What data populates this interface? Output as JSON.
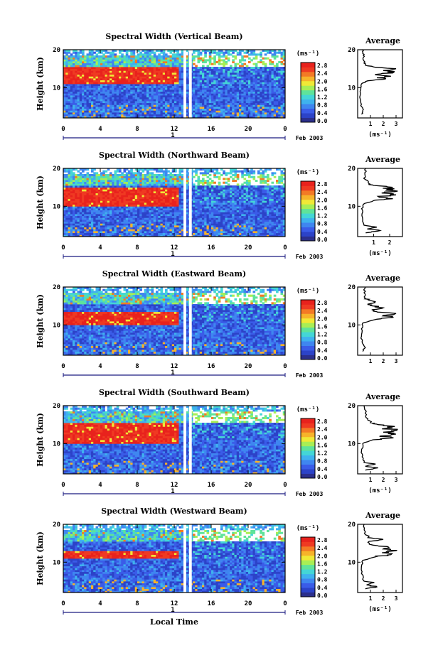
{
  "figure": {
    "date_label": "Feb 2003",
    "xlabel": "Local Time",
    "ylabel": "Height (km)",
    "colorbar_unit": "(ms⁻¹)",
    "average_title": "Average",
    "average_xlabel": "(ms⁻¹)",
    "day_label": "1"
  },
  "chart_data": [
    {
      "type": "heatmap",
      "title": "Spectral Width (Vertical Beam)",
      "xlabel": "Local Time",
      "ylabel": "Height (km)",
      "x_ticks": [
        "0",
        "4",
        "8",
        "12",
        "16",
        "20",
        "0"
      ],
      "xlim": [
        0,
        24
      ],
      "y_ticks": [
        "10",
        "20"
      ],
      "ylim": [
        2,
        20
      ],
      "colorbar": {
        "unit": "(ms⁻¹)",
        "ticks": [
          "0.0",
          "0.4",
          "0.8",
          "1.2",
          "1.6",
          "2.0",
          "2.4",
          "2.8"
        ],
        "range": [
          0,
          3
        ]
      },
      "gaps_hours": [
        [
          13.0,
          13.3
        ],
        [
          13.6,
          13.9
        ]
      ],
      "average_profile": {
        "title": "Average",
        "xlabel": "(ms⁻¹)",
        "x_ticks": [
          "1",
          "2",
          "3"
        ],
        "xlim": [
          0,
          3.5
        ],
        "y_ticks": [
          "10",
          "20"
        ],
        "ylim": [
          2,
          20
        ],
        "points": [
          [
            0.3,
            3
          ],
          [
            0.4,
            4
          ],
          [
            0.3,
            5
          ],
          [
            0.25,
            6
          ],
          [
            0.2,
            8
          ],
          [
            0.25,
            10
          ],
          [
            0.3,
            11
          ],
          [
            0.8,
            11.8
          ],
          [
            2.2,
            12.3
          ],
          [
            1.5,
            12.6
          ],
          [
            2.6,
            13
          ],
          [
            1.4,
            13.5
          ],
          [
            2.8,
            14
          ],
          [
            2.0,
            14.5
          ],
          [
            3.0,
            15
          ],
          [
            1.2,
            15.5
          ],
          [
            0.6,
            16
          ],
          [
            0.5,
            17
          ],
          [
            0.45,
            18
          ],
          [
            0.4,
            19
          ],
          [
            0.35,
            20
          ]
        ]
      }
    },
    {
      "type": "heatmap",
      "title": "Spectral Width (Northward Beam)",
      "xlabel": "Local Time",
      "ylabel": "Height (km)",
      "x_ticks": [
        "0",
        "4",
        "8",
        "12",
        "16",
        "20",
        "0"
      ],
      "xlim": [
        0,
        24
      ],
      "y_ticks": [
        "10",
        "20"
      ],
      "ylim": [
        2,
        20
      ],
      "colorbar": {
        "unit": "(ms⁻¹)",
        "ticks": [
          "0.0",
          "0.4",
          "0.8",
          "1.2",
          "1.6",
          "2.0",
          "2.4",
          "2.8"
        ],
        "range": [
          0,
          3
        ]
      },
      "gaps_hours": [
        [
          13.0,
          13.3
        ],
        [
          13.6,
          13.9
        ]
      ],
      "average_profile": {
        "title": "Average",
        "xlabel": "(ms⁻¹)",
        "x_ticks": [
          "1",
          "2"
        ],
        "xlim": [
          0,
          2.8
        ],
        "y_ticks": [
          "10",
          "20"
        ],
        "ylim": [
          2,
          20
        ],
        "points": [
          [
            0.5,
            3
          ],
          [
            1.4,
            3.6
          ],
          [
            0.6,
            4
          ],
          [
            1.2,
            4.5
          ],
          [
            0.4,
            5
          ],
          [
            0.3,
            7
          ],
          [
            0.3,
            9
          ],
          [
            0.35,
            10.5
          ],
          [
            1.0,
            11.5
          ],
          [
            2.2,
            12
          ],
          [
            1.3,
            12.5
          ],
          [
            2.4,
            13
          ],
          [
            1.5,
            13.5
          ],
          [
            2.5,
            14
          ],
          [
            1.8,
            14.5
          ],
          [
            2.2,
            15
          ],
          [
            1.0,
            15.5
          ],
          [
            0.7,
            16
          ],
          [
            0.5,
            17
          ],
          [
            0.45,
            18.5
          ],
          [
            0.5,
            20
          ]
        ]
      }
    },
    {
      "type": "heatmap",
      "title": "Spectral Width (Eastward Beam)",
      "xlabel": "Local Time",
      "ylabel": "Height (km)",
      "x_ticks": [
        "0",
        "4",
        "8",
        "12",
        "16",
        "20",
        "0"
      ],
      "xlim": [
        0,
        24
      ],
      "y_ticks": [
        "10",
        "20"
      ],
      "ylim": [
        2,
        20
      ],
      "colorbar": {
        "unit": "(ms⁻¹)",
        "ticks": [
          "0.0",
          "0.4",
          "0.8",
          "1.2",
          "1.6",
          "2.0",
          "2.4",
          "2.8"
        ],
        "range": [
          0,
          3
        ]
      },
      "gaps_hours": [
        [
          13.0,
          13.3
        ],
        [
          13.6,
          13.9
        ]
      ],
      "average_profile": {
        "title": "Average",
        "xlabel": "",
        "x_ticks": [
          "1",
          "2",
          "3"
        ],
        "xlim": [
          0,
          3.5
        ],
        "y_ticks": [
          "10",
          "20"
        ],
        "ylim": [
          2,
          20
        ],
        "points": [
          [
            0.4,
            3
          ],
          [
            0.6,
            4
          ],
          [
            0.4,
            5
          ],
          [
            0.3,
            7
          ],
          [
            0.3,
            9
          ],
          [
            0.4,
            10.5
          ],
          [
            1.5,
            11.5
          ],
          [
            2.8,
            12
          ],
          [
            2.0,
            12.5
          ],
          [
            3.0,
            13
          ],
          [
            1.5,
            13.5
          ],
          [
            1.1,
            14
          ],
          [
            2.0,
            14.5
          ],
          [
            1.2,
            15
          ],
          [
            0.8,
            15.5
          ],
          [
            1.3,
            16
          ],
          [
            0.9,
            16.5
          ],
          [
            0.6,
            17
          ],
          [
            0.5,
            18.5
          ],
          [
            0.6,
            20
          ]
        ]
      }
    },
    {
      "type": "heatmap",
      "title": "Spectral Width (Southward Beam)",
      "xlabel": "Local Time",
      "ylabel": "Height (km)",
      "x_ticks": [
        "0",
        "4",
        "8",
        "12",
        "16",
        "20",
        "0"
      ],
      "xlim": [
        0,
        24
      ],
      "y_ticks": [
        "10",
        "20"
      ],
      "ylim": [
        2,
        20
      ],
      "colorbar": {
        "unit": "(ms⁻¹)",
        "ticks": [
          "0.0",
          "0.4",
          "0.8",
          "1.2",
          "1.6",
          "2.0",
          "2.4",
          "2.8"
        ],
        "range": [
          0,
          3
        ]
      },
      "gaps_hours": [
        [
          13.0,
          13.3
        ],
        [
          13.6,
          13.9
        ]
      ],
      "average_profile": {
        "title": "Average",
        "xlabel": "(ms⁻¹)",
        "x_ticks": [
          "1",
          "2",
          "3"
        ],
        "xlim": [
          0,
          3.5
        ],
        "y_ticks": [
          "10",
          "20"
        ],
        "ylim": [
          2,
          20
        ],
        "points": [
          [
            0.6,
            3
          ],
          [
            1.6,
            3.6
          ],
          [
            0.6,
            4
          ],
          [
            1.4,
            4.6
          ],
          [
            0.5,
            5
          ],
          [
            0.35,
            6.5
          ],
          [
            0.3,
            8
          ],
          [
            0.4,
            10
          ],
          [
            1.2,
            11
          ],
          [
            2.8,
            11.5
          ],
          [
            1.8,
            12
          ],
          [
            3.0,
            12.5
          ],
          [
            2.0,
            13
          ],
          [
            3.1,
            13.5
          ],
          [
            2.2,
            14
          ],
          [
            2.9,
            14.5
          ],
          [
            1.6,
            15
          ],
          [
            1.0,
            15.5
          ],
          [
            0.8,
            16.5
          ],
          [
            0.6,
            18
          ],
          [
            0.5,
            20
          ]
        ]
      }
    },
    {
      "type": "heatmap",
      "title": "Spectral Width (Westward Beam)",
      "xlabel": "Local Time",
      "ylabel": "Height (km)",
      "x_ticks": [
        "0",
        "4",
        "8",
        "12",
        "16",
        "20",
        "0"
      ],
      "xlim": [
        0,
        24
      ],
      "y_ticks": [
        "10",
        "20"
      ],
      "ylim": [
        2,
        20
      ],
      "colorbar": {
        "unit": "(ms⁻¹)",
        "ticks": [
          "0.0",
          "0.4",
          "0.8",
          "1.2",
          "1.6",
          "2.0",
          "2.4",
          "2.8"
        ],
        "range": [
          0,
          3
        ]
      },
      "gaps_hours": [
        [
          13.0,
          13.3
        ],
        [
          13.6,
          13.9
        ]
      ],
      "average_profile": {
        "title": "Average",
        "xlabel": "(ms⁻¹)",
        "x_ticks": [
          "1",
          "2",
          "3"
        ],
        "xlim": [
          0,
          3.5
        ],
        "y_ticks": [
          "10",
          "20"
        ],
        "ylim": [
          2,
          20
        ],
        "points": [
          [
            0.6,
            3
          ],
          [
            1.5,
            3.5
          ],
          [
            0.7,
            4
          ],
          [
            1.3,
            4.6
          ],
          [
            0.5,
            5
          ],
          [
            0.3,
            7
          ],
          [
            0.3,
            9
          ],
          [
            0.4,
            10.5
          ],
          [
            1.5,
            11.5
          ],
          [
            2.6,
            12
          ],
          [
            1.9,
            12.5
          ],
          [
            3.0,
            13
          ],
          [
            2.0,
            13.5
          ],
          [
            2.4,
            14
          ],
          [
            1.2,
            14.5
          ],
          [
            0.9,
            15.5
          ],
          [
            2.0,
            16
          ],
          [
            0.8,
            16.5
          ],
          [
            0.6,
            18
          ],
          [
            0.5,
            20
          ]
        ]
      }
    }
  ]
}
